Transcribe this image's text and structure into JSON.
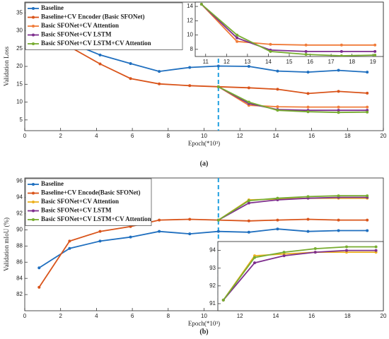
{
  "chart_data": [
    {
      "type": "line",
      "caption": "(a)",
      "ylabel": "Validation Loss",
      "xlabel": "Epoch(*10³)",
      "x": [
        0.8,
        2.5,
        4.2,
        5.9,
        7.5,
        9.2,
        10.8,
        12.5,
        14.1,
        15.8,
        17.5,
        19.1
      ],
      "xlim": [
        0,
        20
      ],
      "xticks": [
        0,
        2,
        4,
        6,
        8,
        10,
        12,
        14,
        16,
        18,
        20
      ],
      "ylim": [
        2,
        38
      ],
      "yticks": [
        5,
        10,
        15,
        20,
        25,
        30,
        35
      ],
      "vline": 10.8,
      "vline_color": "#1f9fe0",
      "legend": "upper-left",
      "series": [
        {
          "name": "Baseline",
          "color": "#1f6fbf",
          "values": [
            37.5,
            26.7,
            23.2,
            20.8,
            18.6,
            19.7,
            20.1,
            20.0,
            18.7,
            18.4,
            18.9,
            18.4
          ]
        },
        {
          "name": "Baseline+CV Encoder (Basic SFONet)",
          "color": "#d9541a",
          "values": [
            37.2,
            25.5,
            20.7,
            16.6,
            15.1,
            14.6,
            14.3,
            14.0,
            13.6,
            12.4,
            13.0,
            12.5
          ]
        },
        {
          "name": "Basic SFONet+CV Attention",
          "color": "#f07c3a",
          "values": [
            null,
            null,
            null,
            null,
            null,
            null,
            14.3,
            9.1,
            8.7,
            8.6,
            8.6,
            8.6
          ]
        },
        {
          "name": "Basic SFONet+CV LSTM",
          "color": "#7e2f8e",
          "values": [
            null,
            null,
            null,
            null,
            null,
            null,
            14.3,
            9.6,
            7.9,
            7.7,
            7.7,
            7.7
          ]
        },
        {
          "name": "Basic SFONet+CV LSTM+CV Attention",
          "color": "#77ac30",
          "values": [
            null,
            null,
            null,
            null,
            null,
            null,
            14.3,
            10.0,
            7.7,
            7.3,
            7.1,
            7.2
          ]
        }
      ],
      "inset": {
        "xlim": [
          10.5,
          19.5
        ],
        "xticks": [
          11,
          12,
          13,
          14,
          15,
          16,
          17,
          18,
          19
        ],
        "ylim": [
          7,
          14.6
        ],
        "yticks": [
          8,
          10,
          12,
          14
        ]
      }
    },
    {
      "type": "line",
      "caption": "(b)",
      "ylabel": "Validation mIoU (%)",
      "xlabel": "Epoch(*10³)",
      "x": [
        0.8,
        2.5,
        4.2,
        5.9,
        7.5,
        9.2,
        10.8,
        12.5,
        14.1,
        15.8,
        17.5,
        19.1
      ],
      "xlim": [
        0,
        20
      ],
      "xticks": [
        0,
        2,
        4,
        6,
        8,
        10,
        12,
        14,
        16,
        18,
        20
      ],
      "ylim": [
        80,
        96.4
      ],
      "yticks": [
        82,
        84,
        86,
        88,
        90,
        92,
        94,
        96
      ],
      "vline": 10.8,
      "vline_color": "#1f9fe0",
      "legend": "upper-left",
      "series": [
        {
          "name": "Baseline",
          "color": "#1f6fbf",
          "values": [
            85.3,
            87.7,
            88.6,
            89.1,
            89.8,
            89.5,
            89.8,
            89.7,
            90.1,
            89.8,
            89.9,
            89.9
          ]
        },
        {
          "name": "Baseline+CV Encode(Basic SFONet)",
          "color": "#d9541a",
          "values": [
            82.9,
            88.6,
            89.8,
            90.4,
            91.2,
            91.3,
            91.2,
            91.1,
            91.2,
            91.3,
            91.2,
            91.2
          ]
        },
        {
          "name": "Basic SFONet+CV Attention",
          "color": "#edb120",
          "values": [
            null,
            null,
            null,
            null,
            null,
            null,
            91.2,
            93.7,
            93.8,
            93.9,
            93.9,
            93.9
          ]
        },
        {
          "name": "Basic SFONet+CV LSTM",
          "color": "#7e2f8e",
          "values": [
            null,
            null,
            null,
            null,
            null,
            null,
            91.2,
            93.3,
            93.7,
            93.9,
            94.0,
            94.0
          ]
        },
        {
          "name": "Basic SFONet+CV LSTM+CV Attention",
          "color": "#77ac30",
          "values": [
            null,
            null,
            null,
            null,
            null,
            null,
            91.2,
            93.6,
            93.9,
            94.1,
            94.2,
            94.2
          ]
        }
      ],
      "inset": {
        "xlim": [
          10.5,
          19.5
        ],
        "xticks": [],
        "ylim": [
          90.6,
          94.5
        ],
        "yticks": [
          91,
          92,
          93,
          94
        ]
      }
    }
  ]
}
